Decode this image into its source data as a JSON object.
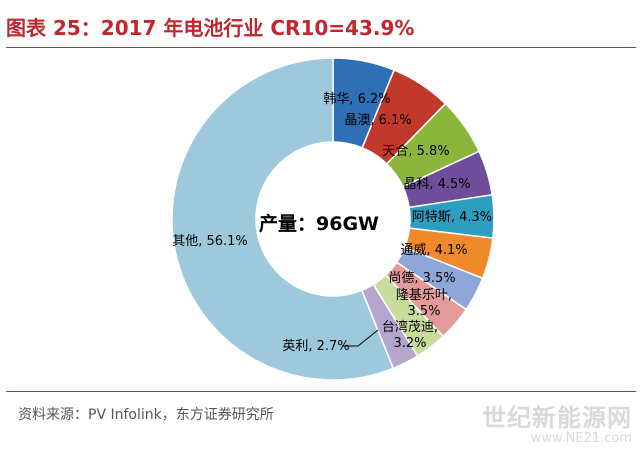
{
  "title": "图表 25：2017 年电池行业 CR10=43.9%",
  "source": "资料来源：PV Infolink，东方证券研究所",
  "watermark": {
    "line1": "世纪新能源网",
    "line2": "www.NE21.com"
  },
  "chart_data": {
    "type": "pie",
    "donut": true,
    "center_label": "产量：96GW",
    "slices": [
      {
        "name": "韩华",
        "value": 6.2,
        "label": "韩华, 6.2%",
        "color": "#2e6fb5"
      },
      {
        "name": "晶澳",
        "value": 6.1,
        "label": "晶澳, 6.1%",
        "color": "#c0392b"
      },
      {
        "name": "天合",
        "value": 5.8,
        "label": "天合, 5.8%",
        "color": "#8cb53c"
      },
      {
        "name": "晶科",
        "value": 4.5,
        "label": "晶科, 4.5%",
        "color": "#6e4d9a"
      },
      {
        "name": "阿特斯",
        "value": 4.3,
        "label": "阿特斯, 4.3%",
        "color": "#2e9ec0"
      },
      {
        "name": "通威",
        "value": 4.1,
        "label": "通威, 4.1%",
        "color": "#ee8a2a"
      },
      {
        "name": "尚德",
        "value": 3.5,
        "label": "尚德, 3.5%",
        "color": "#8fa7d8"
      },
      {
        "name": "隆基乐叶",
        "value": 3.5,
        "label": "隆基乐叶,\n3.5%",
        "color": "#e59a9a"
      },
      {
        "name": "台湾茂迪",
        "value": 3.2,
        "label": "台湾茂迪,\n3.2%",
        "color": "#c8dc9c"
      },
      {
        "name": "英利",
        "value": 2.7,
        "label": "英利, 2.7%",
        "color": "#b4a6cc"
      },
      {
        "name": "其他",
        "value": 56.1,
        "label": "其他, 56.1%",
        "color": "#9ec9dc"
      }
    ]
  }
}
